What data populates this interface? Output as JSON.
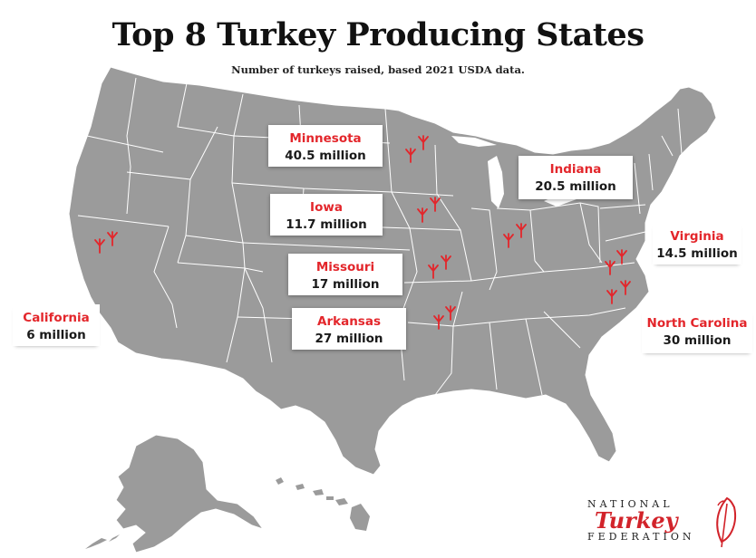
{
  "title": "Top 8 Turkey Producing States",
  "subtitle": "Number of turkeys raised, based 2021 USDA data.",
  "colors": {
    "land": "#9b9b9b",
    "state_border": "#ffffff",
    "accent": "#e3262b",
    "marker": "#e3262b"
  },
  "icons": {
    "marker": "turkey-track-icon"
  },
  "states": [
    {
      "name": "Minnesota",
      "value": "40.5 million"
    },
    {
      "name": "Iowa",
      "value": "11.7 million"
    },
    {
      "name": "Missouri",
      "value": "17 million"
    },
    {
      "name": "Arkansas",
      "value": "27 million"
    },
    {
      "name": "California",
      "value": "6 million"
    },
    {
      "name": "Indiana",
      "value": "20.5 million"
    },
    {
      "name": "Virginia",
      "value": "14.5 million"
    },
    {
      "name": "North Carolina",
      "value": "30 million"
    }
  ],
  "logo": {
    "line1": "NATIONAL",
    "line2": "Turkey",
    "line3": "FEDERATION"
  }
}
